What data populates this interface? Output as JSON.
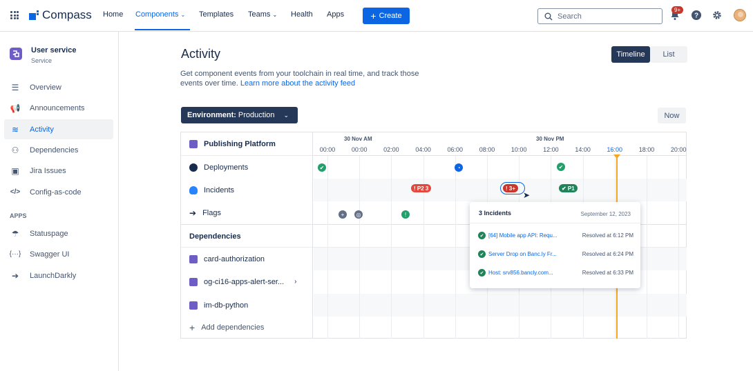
{
  "header": {
    "app_name": "Compass",
    "nav": [
      "Home",
      "Components",
      "Templates",
      "Teams",
      "Health",
      "Apps"
    ],
    "create_label": "Create",
    "search_placeholder": "Search",
    "notification_badge": "9+",
    "colors": {
      "brand": "#0C66E4",
      "danger": "#C9372C"
    }
  },
  "sidebar": {
    "service_name": "User service",
    "service_type": "Service",
    "items": [
      {
        "label": "Overview",
        "icon": "list-icon"
      },
      {
        "label": "Announcements",
        "icon": "megaphone-icon"
      },
      {
        "label": "Activity",
        "icon": "activity-icon",
        "active": true
      },
      {
        "label": "Dependencies",
        "icon": "dependencies-icon"
      },
      {
        "label": "Jira Issues",
        "icon": "jira-icon"
      },
      {
        "label": "Config-as-code",
        "icon": "code-icon"
      }
    ],
    "apps_label": "APPS",
    "apps": [
      {
        "label": "Statuspage",
        "icon": "statuspage-icon"
      },
      {
        "label": "Swagger UI",
        "icon": "swagger-icon"
      },
      {
        "label": "LaunchDarkly",
        "icon": "launchdarkly-icon"
      }
    ]
  },
  "main": {
    "title": "Activity",
    "description": "Get component events from your toolchain in real time, and track those events over time.",
    "description_link": "Learn more about the activity feed",
    "view_toggle": {
      "timeline": "Timeline",
      "list": "List"
    },
    "environment_label": "Environment:",
    "environment_value": "Production",
    "now_label": "Now"
  },
  "timeline": {
    "component": "Publishing Platform",
    "rows": [
      "Deployments",
      "Incidents",
      "Flags"
    ],
    "dependencies_header": "Dependencies",
    "dependencies": [
      "card-authorization",
      "og-ci16-apps-alert-ser...",
      "im-db-python"
    ],
    "add_dependencies": "Add dependencies",
    "days": [
      "30 Nov AM",
      "30 Nov PM"
    ],
    "ticks": [
      "00:00",
      "00:00",
      "02:00",
      "04:00",
      "06:00",
      "08:00",
      "10:00",
      "12:00",
      "14:00",
      "16:00",
      "18:00",
      "20:00"
    ],
    "current_tick": "16:00",
    "incident_pills": [
      {
        "label": "! P2 3",
        "color": "#E2483D"
      },
      {
        "label": "! 3+",
        "color": "#C9372C"
      },
      {
        "label": "✔ P1",
        "color": "#1F845A"
      }
    ]
  },
  "popup": {
    "title": "3 Incidents",
    "date": "September 12, 2023",
    "items": [
      {
        "name": "[64] Mobile app API: Requ...",
        "resolved": "Resolved at 6:12 PM"
      },
      {
        "name": "Server Drop on Banc.ly Fr...",
        "resolved": "Resolved at 6:24 PM"
      },
      {
        "name": "Host: srv856.bancly.com...",
        "resolved": "Resolved at 6:33 PM"
      }
    ]
  }
}
